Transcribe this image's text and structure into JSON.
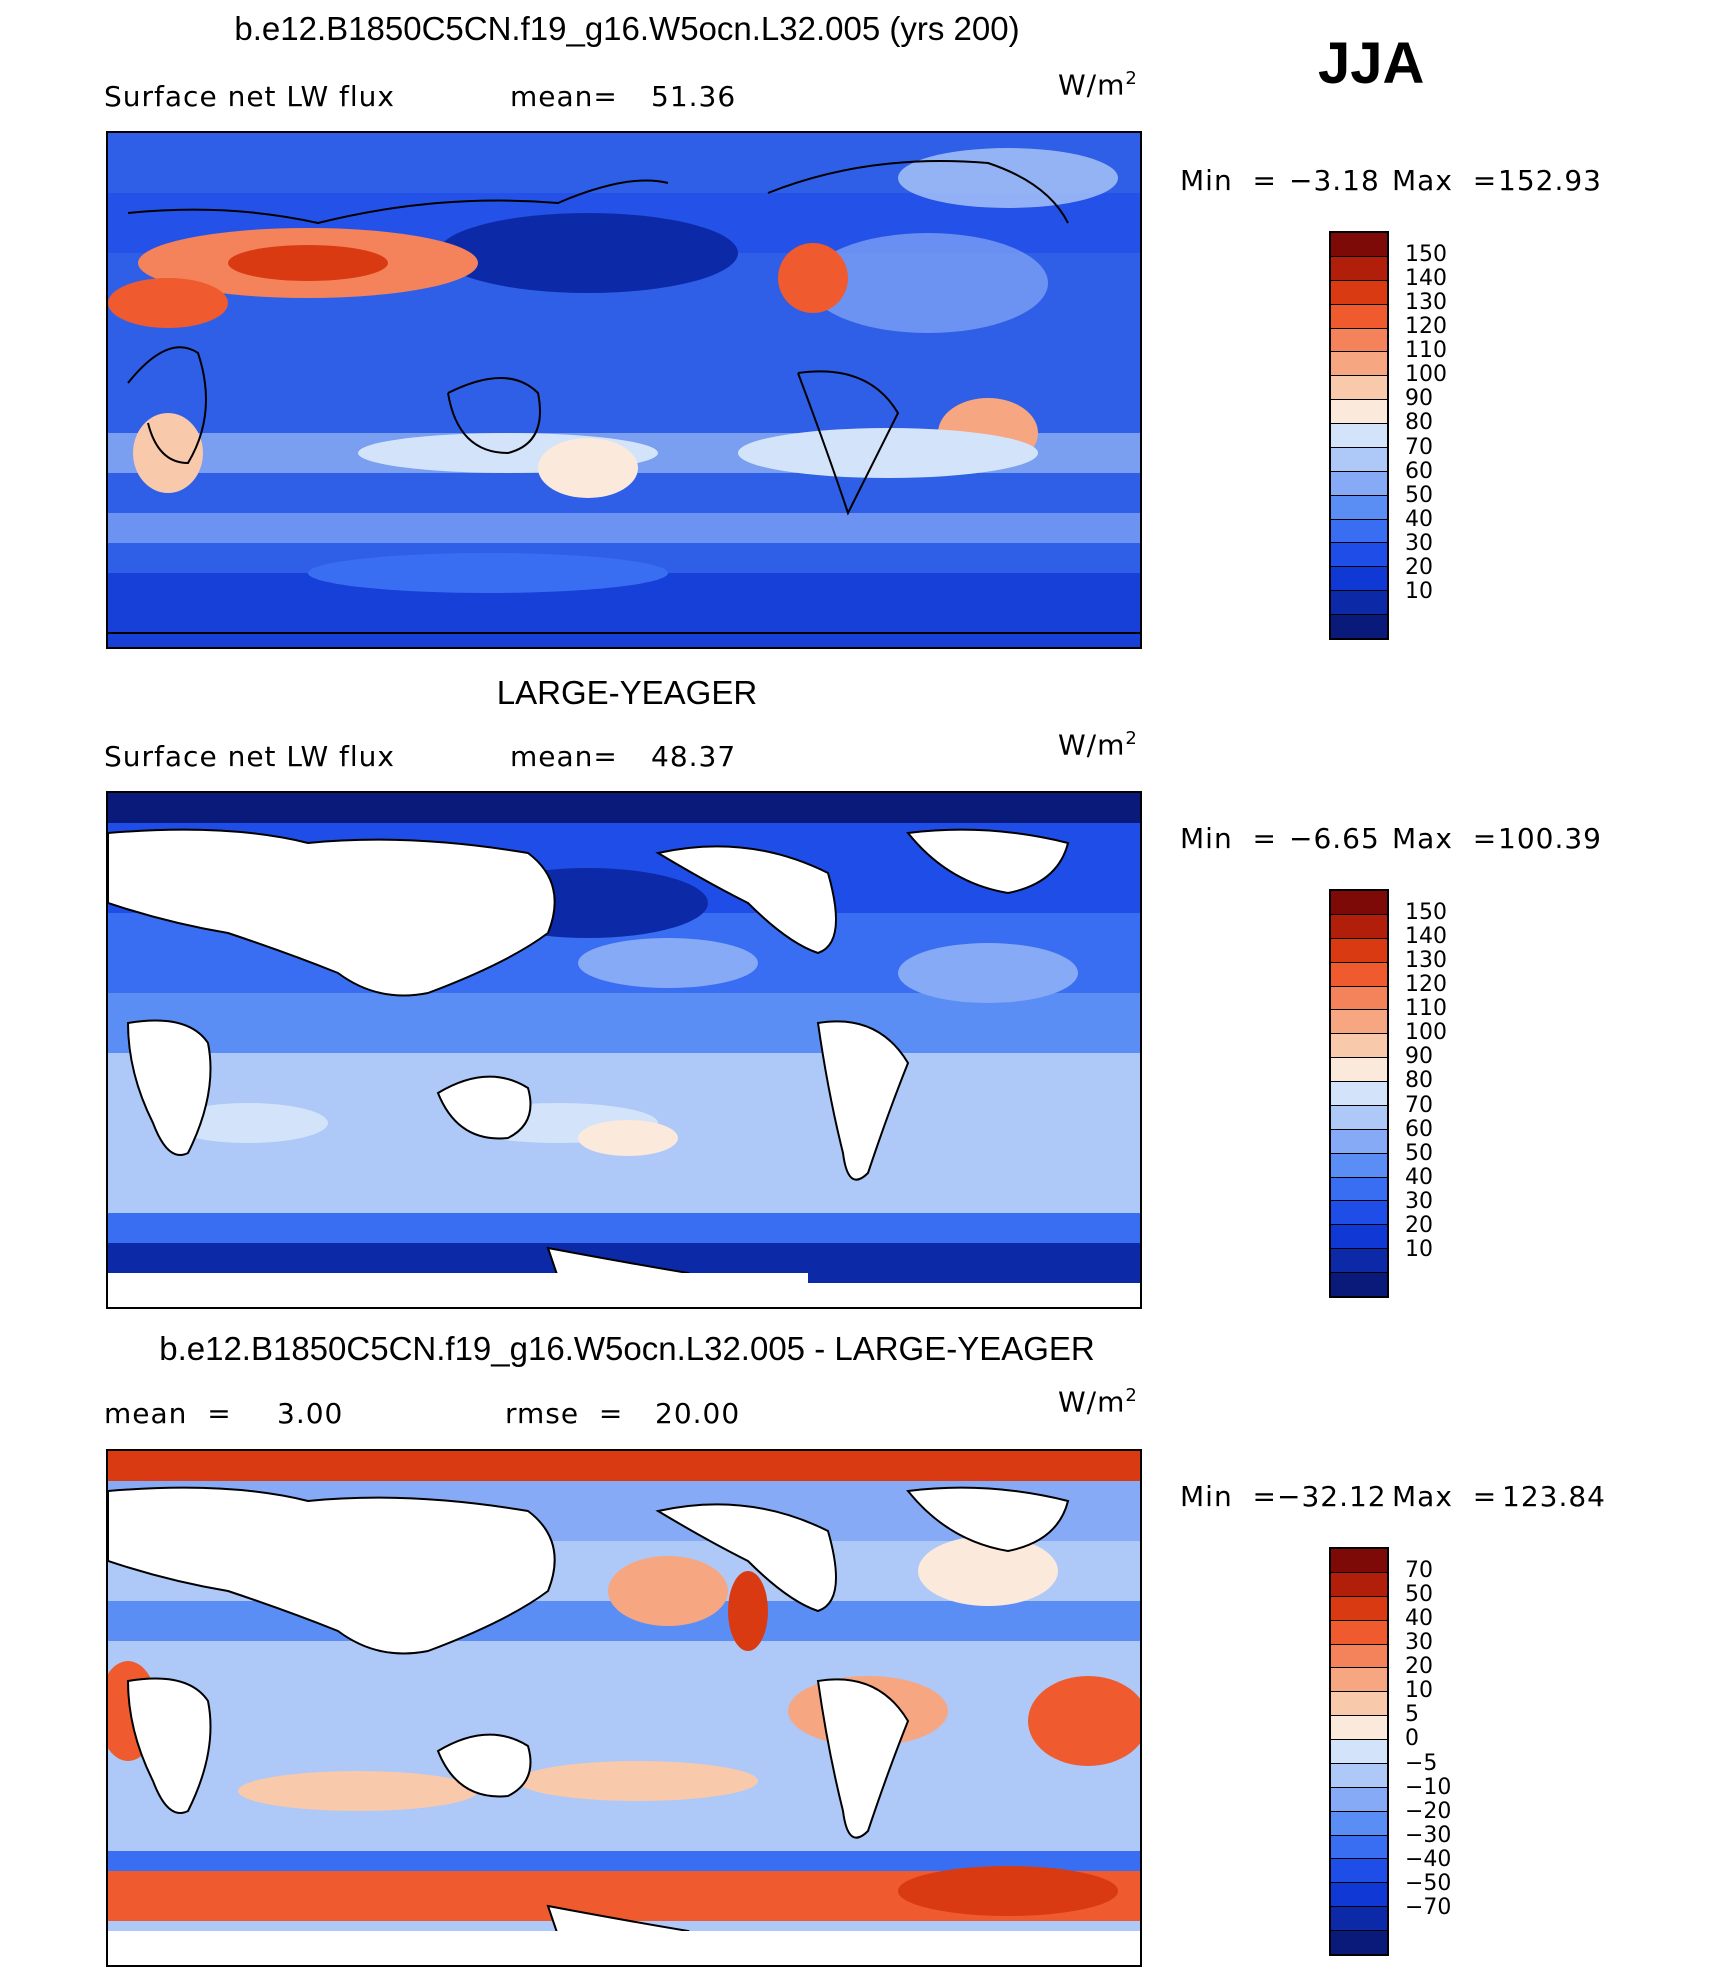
{
  "season": "JJA",
  "colors": {
    "abs": [
      "#0a1a7a",
      "#0c2aa8",
      "#1038d4",
      "#1f4de8",
      "#3a6ef2",
      "#5b8ef5",
      "#86aaf5",
      "#aec8f7",
      "#d3e3fa",
      "#fbe9dc",
      "#f9c9ac",
      "#f7a682",
      "#f4825a",
      "#ef5a2e",
      "#d93a12",
      "#b11e0a",
      "#7d0a06"
    ],
    "diff": [
      "#0a1a7a",
      "#0c2aa8",
      "#1038d4",
      "#1f4de8",
      "#3a6ef2",
      "#5b8ef5",
      "#86aaf5",
      "#aec8f7",
      "#d3e3fa",
      "#fbe9dc",
      "#f9c9ac",
      "#f7a682",
      "#f4825a",
      "#ef5a2e",
      "#d93a12",
      "#b11e0a",
      "#7d0a06"
    ]
  },
  "chart_data": [
    {
      "type": "heatmap",
      "title": "b.e12.B1850C5CN.f19_g16.W5ocn.L32.005 (yrs 200)",
      "variable": "Surface net LW flux",
      "mean_label": "mean=",
      "mean": "51.36",
      "units": "W/m",
      "units_exp": "2",
      "min_label": "Min  =",
      "min": "−3.18",
      "max_label": "Max  =",
      "max": "152.93",
      "levels": [
        "150",
        "140",
        "130",
        "120",
        "110",
        "100",
        "90",
        "80",
        "70",
        "60",
        "50",
        "40",
        "30",
        "20",
        "10"
      ]
    },
    {
      "type": "heatmap",
      "title": "LARGE-YEAGER",
      "variable": "Surface net LW flux",
      "mean_label": "mean=",
      "mean": "48.37",
      "units": "W/m",
      "units_exp": "2",
      "min_label": "Min  =",
      "min": "−6.65",
      "max_label": "Max  =",
      "max": "100.39",
      "levels": [
        "150",
        "140",
        "130",
        "120",
        "110",
        "100",
        "90",
        "80",
        "70",
        "60",
        "50",
        "40",
        "30",
        "20",
        "10"
      ]
    },
    {
      "type": "heatmap",
      "title": "b.e12.B1850C5CN.f19_g16.W5ocn.L32.005 - LARGE-YEAGER",
      "mean_label": "mean  =",
      "mean": "3.00",
      "rmse_label": "rmse  =",
      "rmse": "20.00",
      "units": "W/m",
      "units_exp": "2",
      "min_label": "Min  =",
      "min": "−32.12",
      "max_label": "Max  =",
      "max": "123.84",
      "levels": [
        "70",
        "50",
        "40",
        "30",
        "20",
        "10",
        "5",
        "0",
        "−5",
        "−10",
        "−20",
        "−30",
        "−40",
        "−50",
        "−70"
      ]
    }
  ]
}
